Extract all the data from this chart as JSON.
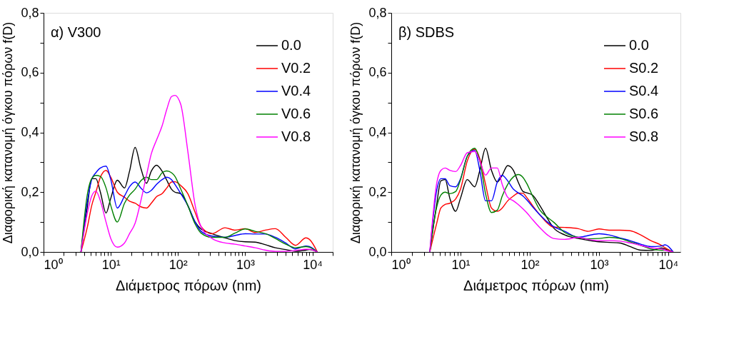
{
  "chart_data": [
    {
      "type": "line",
      "title": "α) V300",
      "xlabel": "Διάμετρος πόρων (nm)",
      "ylabel": "Διαφορική κατανομή όγκου πόρων f(D)",
      "log": "x",
      "grid": false,
      "legend": "top right",
      "x": [
        3.6,
        4.5,
        5.2,
        6,
        7,
        8.5,
        10,
        12.5,
        16,
        19,
        23,
        28,
        34,
        40,
        48,
        58,
        68,
        80,
        90,
        110,
        140,
        180,
        220,
        320,
        500,
        700,
        1000,
        1400,
        2000,
        2800,
        4000,
        5600,
        8000,
        9000,
        11800
      ],
      "xlim": [
        1,
        20000
      ],
      "xticks": [
        {
          "value": 1,
          "label": "10⁰"
        },
        {
          "value": 2,
          "label": null
        },
        {
          "value": 3,
          "label": null
        },
        {
          "value": 4,
          "label": null
        },
        {
          "value": 5,
          "label": null
        },
        {
          "value": 6,
          "label": null
        },
        {
          "value": 7,
          "label": null
        },
        {
          "value": 8,
          "label": null
        },
        {
          "value": 9,
          "label": null
        },
        {
          "value": 10,
          "label": "10¹"
        },
        {
          "value": 20,
          "label": null
        },
        {
          "value": 30,
          "label": null
        },
        {
          "value": 40,
          "label": null
        },
        {
          "value": 50,
          "label": null
        },
        {
          "value": 60,
          "label": null
        },
        {
          "value": 70,
          "label": null
        },
        {
          "value": 80,
          "label": null
        },
        {
          "value": 90,
          "label": null
        },
        {
          "value": 100,
          "label": "10²"
        },
        {
          "value": 200,
          "label": null
        },
        {
          "value": 300,
          "label": null
        },
        {
          "value": 400,
          "label": null
        },
        {
          "value": 500,
          "label": null
        },
        {
          "value": 600,
          "label": null
        },
        {
          "value": 700,
          "label": null
        },
        {
          "value": 800,
          "label": null
        },
        {
          "value": 900,
          "label": null
        },
        {
          "value": 1000,
          "label": "10³"
        },
        {
          "value": 2000,
          "label": null
        },
        {
          "value": 3000,
          "label": null
        },
        {
          "value": 4000,
          "label": null
        },
        {
          "value": 5000,
          "label": null
        },
        {
          "value": 6000,
          "label": null
        },
        {
          "value": 7000,
          "label": null
        },
        {
          "value": 8000,
          "label": null
        },
        {
          "value": 9000,
          "label": null
        },
        {
          "value": 10000,
          "label": "10⁴"
        },
        {
          "value": 20000,
          "label": null
        }
      ],
      "ylim": [
        0,
        0.8
      ],
      "yticks": [
        {
          "value": 0,
          "label": "0,0"
        },
        {
          "value": 0.1,
          "label": null
        },
        {
          "value": 0.2,
          "label": "0,2"
        },
        {
          "value": 0.3,
          "label": null
        },
        {
          "value": 0.4,
          "label": "0,4"
        },
        {
          "value": 0.5,
          "label": null
        },
        {
          "value": 0.6,
          "label": "0,6"
        },
        {
          "value": 0.7,
          "label": null
        },
        {
          "value": 0.8,
          "label": "0,8"
        }
      ],
      "series": [
        {
          "name": "0.0",
          "color": "#000000",
          "values": [
            0,
            0.155,
            0.245,
            0.245,
            0.2,
            0.13,
            0.18,
            0.24,
            0.214,
            0.27,
            0.35,
            0.28,
            0.23,
            0.27,
            0.29,
            0.27,
            0.24,
            0.21,
            0.2,
            0.195,
            0.155,
            0.1,
            0.077,
            0.061,
            0.047,
            0.038,
            0.034,
            0.033,
            0.024,
            0.014,
            0.008,
            0.002,
            0.006,
            0.008,
            0
          ]
        },
        {
          "name": "V0.2",
          "color": "#ff0000",
          "values": [
            0,
            0.085,
            0.155,
            0.2,
            0.25,
            0.273,
            0.25,
            0.2,
            0.183,
            0.17,
            0.163,
            0.151,
            0.147,
            0.163,
            0.185,
            0.195,
            0.214,
            0.234,
            0.235,
            0.222,
            0.195,
            0.132,
            0.085,
            0.061,
            0.081,
            0.073,
            0.078,
            0.065,
            0.073,
            0.078,
            0.049,
            0.022,
            0.047,
            0.042,
            0
          ]
        },
        {
          "name": "V0.4",
          "color": "#0000ff",
          "values": [
            0,
            0.171,
            0.242,
            0.265,
            0.281,
            0.287,
            0.242,
            0.147,
            0.187,
            0.218,
            0.234,
            0.214,
            0.198,
            0.206,
            0.226,
            0.242,
            0.25,
            0.242,
            0.226,
            0.195,
            0.155,
            0.1,
            0.069,
            0.053,
            0.049,
            0.055,
            0.061,
            0.06,
            0.06,
            0.049,
            0.03,
            0.01,
            0.02,
            0.018,
            0
          ]
        },
        {
          "name": "V0.6",
          "color": "#008000",
          "values": [
            0,
            0.195,
            0.245,
            0.256,
            0.253,
            0.214,
            0.155,
            0.1,
            0.163,
            0.19,
            0.21,
            0.238,
            0.25,
            0.242,
            0.242,
            0.265,
            0.271,
            0.265,
            0.253,
            0.21,
            0.155,
            0.093,
            0.063,
            0.049,
            0.049,
            0.063,
            0.077,
            0.069,
            0.061,
            0.045,
            0.026,
            0.014,
            0.018,
            0.016,
            0
          ]
        },
        {
          "name": "V0.8",
          "color": "#ff00ff",
          "values": [
            0,
            0.132,
            0.187,
            0.204,
            0.171,
            0.1,
            0.045,
            0.016,
            0.03,
            0.061,
            0.096,
            0.171,
            0.257,
            0.328,
            0.375,
            0.422,
            0.477,
            0.52,
            0.524,
            0.493,
            0.336,
            0.155,
            0.085,
            0.045,
            0.03,
            0.026,
            0.02,
            0.014,
            0.006,
            0.002,
            0.002,
            0.005,
            0.009,
            0.009,
            0
          ]
        }
      ]
    },
    {
      "type": "line",
      "title": "β) SDBS",
      "xlabel": "Διάμετρος πόρων (nm)",
      "ylabel": "Διαφορική κατανομή όγκου πόρων f(D)",
      "log": "x",
      "grid": false,
      "legend": "top right",
      "x": [
        3.6,
        4.5,
        5.2,
        6,
        7,
        8.5,
        10,
        12.5,
        16,
        19,
        23,
        28,
        34,
        40,
        48,
        58,
        68,
        80,
        90,
        110,
        140,
        180,
        220,
        320,
        500,
        700,
        1000,
        1400,
        2000,
        2800,
        4000,
        5600,
        8000,
        9000,
        11800
      ],
      "xlim": [
        1,
        15000
      ],
      "xticks": [
        {
          "value": 1,
          "label": "10⁰"
        },
        {
          "value": 2,
          "label": null
        },
        {
          "value": 3,
          "label": null
        },
        {
          "value": 4,
          "label": null
        },
        {
          "value": 5,
          "label": null
        },
        {
          "value": 6,
          "label": null
        },
        {
          "value": 7,
          "label": null
        },
        {
          "value": 8,
          "label": null
        },
        {
          "value": 9,
          "label": null
        },
        {
          "value": 10,
          "label": "10¹"
        },
        {
          "value": 20,
          "label": null
        },
        {
          "value": 30,
          "label": null
        },
        {
          "value": 40,
          "label": null
        },
        {
          "value": 50,
          "label": null
        },
        {
          "value": 60,
          "label": null
        },
        {
          "value": 70,
          "label": null
        },
        {
          "value": 80,
          "label": null
        },
        {
          "value": 90,
          "label": null
        },
        {
          "value": 100,
          "label": "10²"
        },
        {
          "value": 200,
          "label": null
        },
        {
          "value": 300,
          "label": null
        },
        {
          "value": 400,
          "label": null
        },
        {
          "value": 500,
          "label": null
        },
        {
          "value": 600,
          "label": null
        },
        {
          "value": 700,
          "label": null
        },
        {
          "value": 800,
          "label": null
        },
        {
          "value": 900,
          "label": null
        },
        {
          "value": 1000,
          "label": "10³"
        },
        {
          "value": 2000,
          "label": null
        },
        {
          "value": 3000,
          "label": null
        },
        {
          "value": 4000,
          "label": null
        },
        {
          "value": 5000,
          "label": null
        },
        {
          "value": 6000,
          "label": null
        },
        {
          "value": 7000,
          "label": null
        },
        {
          "value": 8000,
          "label": null
        },
        {
          "value": 9000,
          "label": null
        },
        {
          "value": 10000,
          "label": "10⁴"
        }
      ],
      "ylim": [
        0,
        0.8
      ],
      "yticks": [
        {
          "value": 0,
          "label": "0,0"
        },
        {
          "value": 0.1,
          "label": null
        },
        {
          "value": 0.2,
          "label": "0,2"
        },
        {
          "value": 0.3,
          "label": null
        },
        {
          "value": 0.4,
          "label": "0,4"
        },
        {
          "value": 0.5,
          "label": null
        },
        {
          "value": 0.6,
          "label": "0,6"
        },
        {
          "value": 0.7,
          "label": null
        },
        {
          "value": 0.8,
          "label": "0,8"
        }
      ],
      "series": [
        {
          "name": "0.0",
          "color": "#000000",
          "values": [
            0,
            0.155,
            0.238,
            0.242,
            0.18,
            0.136,
            0.18,
            0.242,
            0.218,
            0.273,
            0.347,
            0.273,
            0.234,
            0.257,
            0.289,
            0.273,
            0.234,
            0.202,
            0.198,
            0.19,
            0.155,
            0.112,
            0.081,
            0.057,
            0.045,
            0.039,
            0.034,
            0.032,
            0.03,
            0.018,
            0.006,
            0.005,
            0.013,
            0.01,
            0
          ]
        },
        {
          "name": "S0.2",
          "color": "#ff0000",
          "values": [
            0,
            0.093,
            0.147,
            0.159,
            0.163,
            0.177,
            0.21,
            0.304,
            0.344,
            0.312,
            0.226,
            0.147,
            0.136,
            0.147,
            0.171,
            0.187,
            0.197,
            0.196,
            0.183,
            0.155,
            0.124,
            0.096,
            0.083,
            0.082,
            0.078,
            0.069,
            0.077,
            0.073,
            0.073,
            0.071,
            0.057,
            0.038,
            0.022,
            0.014,
            0
          ]
        },
        {
          "name": "S0.4",
          "color": "#0000ff",
          "values": [
            0,
            0.202,
            0.245,
            0.245,
            0.222,
            0.218,
            0.245,
            0.32,
            0.34,
            0.273,
            0.171,
            0.171,
            0.234,
            0.256,
            0.238,
            0.21,
            0.198,
            0.187,
            0.175,
            0.151,
            0.124,
            0.1,
            0.085,
            0.069,
            0.049,
            0.055,
            0.061,
            0.057,
            0.047,
            0.038,
            0.026,
            0.018,
            0.02,
            0.024,
            0
          ]
        },
        {
          "name": "S0.6",
          "color": "#008000",
          "values": [
            0,
            0.147,
            0.19,
            0.2,
            0.195,
            0.202,
            0.242,
            0.32,
            0.347,
            0.304,
            0.195,
            0.132,
            0.14,
            0.187,
            0.226,
            0.251,
            0.259,
            0.249,
            0.23,
            0.187,
            0.14,
            0.116,
            0.1,
            0.065,
            0.049,
            0.044,
            0.045,
            0.049,
            0.045,
            0.034,
            0.022,
            0.01,
            0.006,
            0.006,
            0
          ]
        },
        {
          "name": "S0.8",
          "color": "#ff00ff",
          "values": [
            0,
            0.226,
            0.273,
            0.281,
            0.273,
            0.269,
            0.289,
            0.332,
            0.336,
            0.304,
            0.257,
            0.281,
            0.281,
            0.226,
            0.183,
            0.171,
            0.159,
            0.144,
            0.132,
            0.108,
            0.081,
            0.057,
            0.045,
            0.042,
            0.049,
            0.042,
            0.038,
            0.038,
            0.036,
            0.03,
            0.022,
            0.014,
            0.01,
            0.006,
            0
          ]
        }
      ]
    }
  ]
}
